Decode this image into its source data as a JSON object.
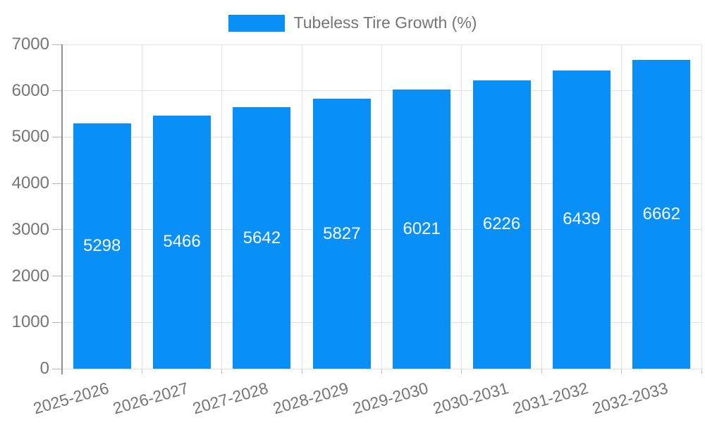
{
  "chart_data": {
    "type": "bar",
    "title": "Tubeless Tire Growth (%)",
    "legend": {
      "label": "Tubeless Tire Growth (%)",
      "position": "top-center"
    },
    "categories": [
      "2025-2026",
      "2026-2027",
      "2027-2028",
      "2028-2029",
      "2029-2030",
      "2030-2031",
      "2031-2032",
      "2032-2033"
    ],
    "values": [
      5298,
      5466,
      5642,
      5827,
      6021,
      6226,
      6439,
      6662
    ],
    "value_labels_shown": true,
    "xlabel": "",
    "ylabel": "",
    "ylim": [
      0,
      7000
    ],
    "ytick_step": 1000,
    "ytick_labels": [
      "0",
      "1000",
      "2000",
      "3000",
      "4000",
      "5000",
      "6000",
      "7000"
    ],
    "grid": {
      "horizontal": true,
      "vertical": true
    },
    "x_label_rotation_deg": -16,
    "colors": {
      "bar_fill": "#0890F8",
      "value_label": "#FFFFFF",
      "axis_text": "#757575",
      "gridline": "#E2E2E2",
      "axis_line": "#8F8F8F",
      "background": "#FFFFFF"
    }
  }
}
